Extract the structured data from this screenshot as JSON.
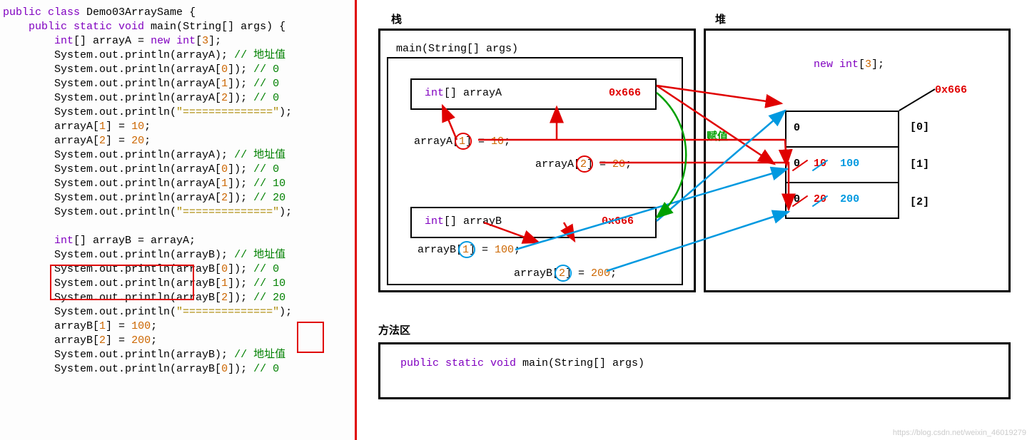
{
  "code": {
    "class_decl": {
      "kw1": "public class",
      "name": " Demo03ArraySame ",
      "brace": "{"
    },
    "main_decl": {
      "indent": "    ",
      "kw1": "public static void",
      "name": " main",
      "params": "(String[] args) ",
      "brace": "{"
    },
    "line_decl_a": {
      "indent": "        ",
      "kw": "int",
      "rest": "[] arrayA = ",
      "kw2": "new int",
      "arr": "[",
      "n": "3",
      "arr2": "];"
    },
    "pa": {
      "indent": "        ",
      "txt": "System.out.println(arrayA); ",
      "c": "// 地址值"
    },
    "pa0": {
      "indent": "        ",
      "txt": "System.out.println(arrayA[",
      "n": "0",
      "txt2": "]); ",
      "c": "// 0"
    },
    "pa1": {
      "indent": "        ",
      "txt": "System.out.println(arrayA[",
      "n": "1",
      "txt2": "]); ",
      "c": "// 0"
    },
    "pa2": {
      "indent": "        ",
      "txt": "System.out.println(arrayA[",
      "n": "2",
      "txt2": "]); ",
      "c": "// 0"
    },
    "sep1": {
      "indent": "        ",
      "txt": "System.out.println(",
      "s": "\"==============\"",
      "txt2": ");"
    },
    "asg_a1": {
      "indent": "        ",
      "txt": "arrayA[",
      "n": "1",
      "txt2": "] = ",
      "v": "10",
      "txt3": ";"
    },
    "asg_a2": {
      "indent": "        ",
      "txt": "arrayA[",
      "n": "2",
      "txt2": "] = ",
      "v": "20",
      "txt3": ";"
    },
    "pa_2": {
      "indent": "        ",
      "txt": "System.out.println(arrayA); ",
      "c": "// 地址值"
    },
    "pa0_2": {
      "indent": "        ",
      "txt": "System.out.println(arrayA[",
      "n": "0",
      "txt2": "]); ",
      "c": "// 0"
    },
    "pa1_2": {
      "indent": "        ",
      "txt": "System.out.println(arrayA[",
      "n": "1",
      "txt2": "]); ",
      "c": "// 10"
    },
    "pa2_2": {
      "indent": "        ",
      "txt": "System.out.println(arrayA[",
      "n": "2",
      "txt2": "]); ",
      "c": "// 20"
    },
    "sep2": {
      "indent": "        ",
      "txt": "System.out.println(",
      "s": "\"==============\"",
      "txt2": ");"
    },
    "blank": " ",
    "decl_b": {
      "indent": "        ",
      "kw": "int",
      "txt": "[] arrayB = arrayA;"
    },
    "pb": {
      "indent": "        ",
      "txt": "System.out.println(arrayB); ",
      "c": "// 地址值"
    },
    "pb0": {
      "indent": "        ",
      "txt": "System.out.println(arrayB[",
      "n": "0",
      "txt2": "]); ",
      "c": "// 0"
    },
    "pb1": {
      "indent": "        ",
      "txt": "System.out.println(arrayB[",
      "n": "1",
      "txt2": "]); ",
      "c": "// 10"
    },
    "pb2": {
      "indent": "        ",
      "txt": "System.out.println(arrayB[",
      "n": "2",
      "txt2": "]); ",
      "c": "// 20"
    },
    "sep3": {
      "indent": "        ",
      "txt": "System.out.println(",
      "s": "\"==============\"",
      "txt2": ");"
    },
    "asg_b1": {
      "indent": "        ",
      "txt": "arrayB[",
      "n": "1",
      "txt2": "] = ",
      "v": "100",
      "txt3": ";"
    },
    "asg_b2": {
      "indent": "        ",
      "txt": "arrayB[",
      "n": "2",
      "txt2": "] = ",
      "v": "200",
      "txt3": ";"
    },
    "pb_2": {
      "indent": "        ",
      "txt": "System.out.println(arrayB); ",
      "c": "// 地址值"
    },
    "pb0_2": {
      "indent": "        ",
      "txt": "System.out.println(arrayB[",
      "n": "0",
      "txt2": "]); ",
      "c": "// 0"
    }
  },
  "diagram": {
    "stack_label": "栈",
    "heap_label": "堆",
    "method_label": "方法区",
    "main_sig": "main(String[] args)",
    "method_sig": {
      "p1": "public static void ",
      "p2": "main(String[] args)"
    },
    "var_a": {
      "decl": "int[] arrayA",
      "addr": "0x666"
    },
    "var_b": {
      "decl": "int[] arrayB",
      "addr": "0x666"
    },
    "stmt_a1": {
      "pre": "arrayA[",
      "idx": "1",
      "mid": "] = ",
      "val": "10",
      "post": ";"
    },
    "stmt_a2": {
      "pre": "arrayA[",
      "idx": "2",
      "mid": "] = ",
      "val": "20",
      "post": ";"
    },
    "stmt_b1": {
      "pre": "arrayB[",
      "idx": "1",
      "mid": "] = ",
      "val": "100",
      "post": ";"
    },
    "stmt_b2": {
      "pre": "arrayB[",
      "idx": "2",
      "mid": "] = ",
      "val": "200",
      "post": ";"
    },
    "assign_label": "赋值",
    "heap_new": {
      "p1": "new int",
      "p2": "[",
      "n": "3",
      "p3": "];"
    },
    "heap_addr": "0x666",
    "cells": [
      {
        "idx": "[0]",
        "old": "0",
        "new": "",
        "newer": ""
      },
      {
        "idx": "[1]",
        "old": "0",
        "new": "10",
        "newer": "100"
      },
      {
        "idx": "[2]",
        "old": "0",
        "new": "20",
        "newer": "200"
      }
    ],
    "colors": {
      "red": "#e00000",
      "blue": "#0099e0",
      "green": "#00a000",
      "orange": "#cc6600",
      "purple": "#8000c0"
    },
    "arrow_paths": {
      "red": [
        "M 420,120 L 595,145",
        "M 420,120 L 585,230",
        "M 140,196 L 120,148",
        "M 280,196 L 280,150",
        "M 170,196 L 600,196 L 602,232",
        "M 340,228 L 605,228 L 605,294",
        "M 178,312 L 255,340",
        "M 290,312 L 305,338"
      ],
      "blue": [
        "M 420,310 L 600,155",
        "M 222,350 L 603,237",
        "M 350,380 L 605,297"
      ],
      "green": [
        "M 420,130 C 475,175 475,260 420,305"
      ]
    }
  },
  "watermark": "https://blog.csdn.net/weixin_46019279"
}
